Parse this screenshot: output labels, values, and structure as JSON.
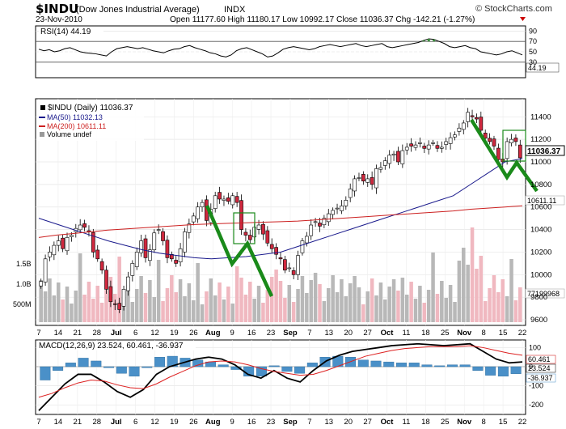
{
  "header": {
    "symbol": "$INDU",
    "name": "(Dow Jones Industrial Average)",
    "exchange": "INDX",
    "date": "23-Nov-2010",
    "ohlc_text": "Open 11177.60  High 11180.17  Low 10992.17  Close 11036.37  Chg -142.21 (-1.27%)",
    "copyright": "© StockCharts.com"
  },
  "colors": {
    "up_candle": "#ffffff",
    "down_candle": "#d0283e",
    "ma50": "#1a1a8c",
    "ma200": "#cc2020",
    "volume_up": "#b8b8b8",
    "volume_down": "#f0b8c0",
    "histogram": "#4a90c8",
    "annotation": "#1a8a1a",
    "macd_line": "#000000",
    "signal_line": "#dd2020"
  },
  "chart_data": [
    {
      "type": "line",
      "panel": "rsi",
      "title": "RSI(14) 44.19",
      "ylim": [
        0,
        100
      ],
      "yticks": [
        30,
        50,
        70,
        90
      ],
      "reference_lines": [
        30,
        70
      ],
      "last_value_label": "44.19",
      "series": [
        {
          "name": "RSI(14)",
          "values": [
            55,
            52,
            54,
            50,
            52,
            56,
            58,
            54,
            50,
            48,
            47,
            46,
            44,
            42,
            50,
            56,
            58,
            60,
            58,
            56,
            58,
            55,
            52,
            50,
            48,
            52,
            55,
            56,
            60,
            62,
            58,
            55,
            52,
            48,
            46,
            42,
            40,
            44,
            52,
            56,
            58,
            54,
            50,
            46,
            40,
            42,
            48,
            55,
            58,
            60,
            58,
            56,
            54,
            56,
            60,
            62,
            64,
            62,
            60,
            62,
            64,
            66,
            62,
            60,
            62,
            64,
            66,
            60,
            58,
            60,
            62,
            64,
            66,
            68,
            72,
            75,
            74,
            70,
            66,
            60,
            58,
            60,
            62,
            58,
            56,
            50,
            48,
            46,
            44,
            46,
            50,
            52,
            48,
            44
          ]
        }
      ]
    },
    {
      "type": "candlestick",
      "panel": "price",
      "title": "$INDU (Daily) 11036.37",
      "ylim": [
        9550,
        11560
      ],
      "yticks": [
        9600,
        9800,
        10000,
        10200,
        10400,
        10600,
        10800,
        11000,
        11200,
        11400
      ],
      "x_labels": [
        "7",
        "14",
        "21",
        "28",
        "Jul",
        "6",
        "12",
        "19",
        "26",
        "Aug",
        "9",
        "16",
        "23",
        "Sep",
        "7",
        "13",
        "20",
        "27",
        "Oct",
        "11",
        "18",
        "25",
        "Nov",
        "8",
        "15",
        "22"
      ],
      "legend": [
        "$INDU (Daily) 11036.37",
        "MA(50) 11032.13",
        "MA(200) 10611.11",
        "Volume undef"
      ],
      "price_labels": [
        "11036.37",
        "10611.11"
      ],
      "volume_labels": [
        "1.5B",
        "1.0B",
        "500M"
      ],
      "volume_last_label": "77199968",
      "closes": [
        9940,
        10140,
        10200,
        10260,
        10300,
        10230,
        10330,
        10350,
        10410,
        10440,
        10420,
        10380,
        10200,
        10140,
        10040,
        9870,
        9760,
        9740,
        9690,
        9870,
        9980,
        10100,
        10200,
        10300,
        10150,
        10220,
        10370,
        10400,
        10300,
        10150,
        10140,
        10100,
        10230,
        10380,
        10450,
        10520,
        10600,
        10640,
        10480,
        10580,
        10700,
        10670,
        10670,
        10650,
        10700,
        10640,
        10400,
        10350,
        10310,
        10420,
        10440,
        10360,
        10280,
        10230,
        10180,
        10140,
        10040,
        10060,
        10000,
        10170,
        10300,
        10340,
        10440,
        10470,
        10430,
        10500,
        10540,
        10570,
        10590,
        10610,
        10660,
        10760,
        10850,
        10860,
        10830,
        10850,
        10800,
        10940,
        10950,
        11010,
        11060,
        11070,
        11000,
        11100,
        11130,
        11140,
        11150,
        11170,
        11120,
        11150,
        11170,
        11120,
        11130,
        11180,
        11215,
        11240,
        11300,
        11345,
        11440,
        11400,
        11380,
        11280,
        11210,
        11180,
        11140,
        11020,
        11000,
        11180,
        11200,
        11180,
        11036
      ],
      "ma_series": [
        {
          "name": "MA(50)",
          "values": [
            10500,
            10450,
            10400,
            10350,
            10300,
            10260,
            10220,
            10190,
            10170,
            10150,
            10140,
            10150,
            10160,
            10180,
            10200,
            10250,
            10300,
            10350,
            10400,
            10450,
            10500,
            10550,
            10600,
            10650,
            10700,
            10800,
            10900,
            11000,
            11030
          ]
        },
        {
          "name": "MA(200)",
          "values": [
            10330,
            10350,
            10365,
            10380,
            10395,
            10405,
            10415,
            10425,
            10435,
            10445,
            10450,
            10455,
            10460,
            10465,
            10470,
            10475,
            10485,
            10495,
            10505,
            10515,
            10525,
            10535,
            10545,
            10555,
            10565,
            10580,
            10590,
            10600,
            10611
          ]
        }
      ],
      "annotations": [
        "green zigzag arrow Aug 2010",
        "green zigzag arrow Nov 2010",
        "green box Aug 16",
        "green box Nov 19"
      ]
    },
    {
      "type": "line",
      "panel": "macd",
      "title": "MACD(12,26,9) 23.524, 60.461, -36.937",
      "ylim": [
        -250,
        140
      ],
      "yticks": [
        -200,
        -100,
        0,
        100
      ],
      "x_labels": [
        "7",
        "14",
        "21",
        "28",
        "Jul",
        "6",
        "12",
        "19",
        "26",
        "Aug",
        "9",
        "16",
        "23",
        "Sep",
        "7",
        "13",
        "20",
        "27",
        "Oct",
        "11",
        "18",
        "25",
        "Nov",
        "8",
        "15",
        "22"
      ],
      "value_labels": [
        "60.461",
        "23.524",
        "-36.937"
      ],
      "series": [
        {
          "name": "MACD",
          "values": [
            -230,
            -160,
            -90,
            -40,
            -40,
            -80,
            -130,
            -160,
            -120,
            -40,
            0,
            20,
            40,
            50,
            40,
            10,
            -40,
            -60,
            -20,
            -60,
            -80,
            -20,
            30,
            60,
            80,
            90,
            100,
            110,
            115,
            120,
            115,
            110,
            115,
            120,
            80,
            40,
            20,
            25
          ]
        },
        {
          "name": "Signal",
          "values": [
            -160,
            -140,
            -110,
            -85,
            -70,
            -75,
            -95,
            -110,
            -115,
            -90,
            -55,
            -25,
            5,
            25,
            30,
            25,
            10,
            -10,
            -25,
            -35,
            -45,
            -40,
            -20,
            5,
            30,
            55,
            70,
            85,
            95,
            100,
            105,
            105,
            105,
            110,
            100,
            85,
            70,
            60
          ]
        },
        {
          "name": "Histogram",
          "values": [
            -70,
            -20,
            20,
            45,
            30,
            -5,
            -35,
            -50,
            -5,
            50,
            55,
            45,
            35,
            25,
            10,
            -15,
            -50,
            -50,
            5,
            -25,
            -35,
            20,
            50,
            55,
            50,
            35,
            30,
            25,
            20,
            20,
            10,
            5,
            10,
            10,
            -20,
            -45,
            -50,
            -37
          ]
        }
      ]
    }
  ]
}
